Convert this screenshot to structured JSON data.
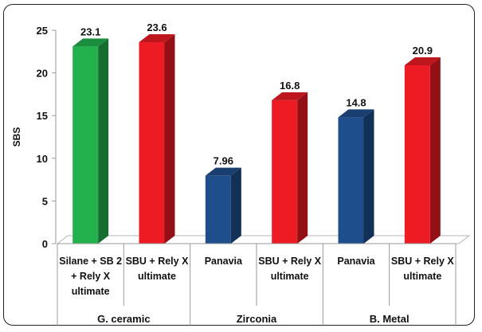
{
  "chart_data": {
    "type": "bar",
    "style": "3d-columns",
    "ylabel": "SBS",
    "ylim": [
      0,
      25
    ],
    "yticks": [
      0,
      5,
      10,
      15,
      20,
      25
    ],
    "grid": false,
    "categories": [
      [
        "Silane + SB 2",
        "+ Rely X",
        "ultimate"
      ],
      [
        "SBU + Rely X",
        "ultimate"
      ],
      [
        "Panavia"
      ],
      [
        "SBU + Rely X",
        "ultimate"
      ],
      [
        "Panavia"
      ],
      [
        "SBU + Rely X",
        "ultimate"
      ]
    ],
    "groups": [
      {
        "label": "G. ceramic",
        "span": [
          0,
          1
        ]
      },
      {
        "label": "Zirconia",
        "span": [
          2,
          3
        ]
      },
      {
        "label": "B. Metal",
        "span": [
          4,
          5
        ]
      }
    ],
    "values": [
      23.1,
      23.6,
      7.96,
      16.8,
      14.8,
      20.9
    ],
    "data_labels": [
      "23.1",
      "23.6",
      "7.96",
      "16.8",
      "14.8",
      "20.9"
    ],
    "bar_colors": [
      "#22b14c",
      "#ed1c24",
      "#1f4e8c",
      "#ed1c24",
      "#1f4e8c",
      "#ed1c24"
    ]
  }
}
